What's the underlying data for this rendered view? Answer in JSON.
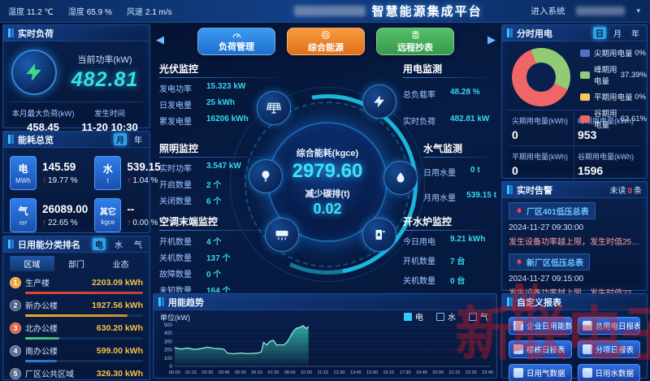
{
  "topbar": {
    "weather": [
      {
        "label": "温度",
        "value": "11.2 ℃"
      },
      {
        "label": "湿度",
        "value": "65.9 %"
      },
      {
        "label": "风速",
        "value": "2.1 m/s"
      }
    ],
    "title": "智慧能源集成平台",
    "enter_system": "进入系统"
  },
  "realtime_load": {
    "title": "实时负荷",
    "current_power_label": "当前功率(kW)",
    "current_power": "482.81",
    "max_load_label": "本月最大负荷(kW)",
    "max_load": "458.45",
    "occur_time_label": "发生时间",
    "occur_time": "11-20 10:30"
  },
  "energy_overview": {
    "title": "能耗总览",
    "toggle": [
      "月",
      "年"
    ],
    "selected": "月",
    "items": [
      {
        "name": "电",
        "unit": "MWh",
        "value": "145.59",
        "delta": "19.77 %"
      },
      {
        "name": "水",
        "unit": "t",
        "value": "539.15",
        "delta": "1.04 %"
      },
      {
        "name": "气",
        "unit": "m³",
        "value": "26089.00",
        "delta": "22.65 %"
      },
      {
        "name": "其它",
        "unit": "kgce",
        "value": "--",
        "delta": "0.00 %"
      }
    ]
  },
  "ranking": {
    "title": "日用能分类排名",
    "tabs": [
      "电",
      "水",
      "气"
    ],
    "selected_tab": "电",
    "columns": [
      "区域",
      "部门",
      "业态"
    ],
    "selected_column": "区域",
    "rows": [
      {
        "rank": "1",
        "name": "生产楼",
        "value": "2203.09 kWh",
        "pct": 100,
        "color": "#e8453c",
        "badge_color": "#f2a63c"
      },
      {
        "rank": "2",
        "name": "新办公楼",
        "value": "1927.56 kWh",
        "pct": 87,
        "color": "#f5a623",
        "badge_color": "#4a5f86"
      },
      {
        "rank": "3",
        "name": "北办公楼",
        "value": "630.20 kWh",
        "pct": 29,
        "color": "#43d17c",
        "badge_color": "#e2603f"
      },
      {
        "rank": "4",
        "name": "南办公楼",
        "value": "599.00 kWh",
        "pct": 27,
        "color": "#2f7fd6",
        "badge_color": "#5a6b8c"
      },
      {
        "rank": "5",
        "name": "厂区公共区域",
        "value": "326.30 kWh",
        "pct": 15,
        "color": "#2f7fd6",
        "badge_color": "#5a6b8c"
      }
    ]
  },
  "center": {
    "buttons": [
      {
        "label": "负荷管理",
        "color": "#1e7fdd"
      },
      {
        "label": "综合能源",
        "color": "#f07f1f"
      },
      {
        "label": "远程抄表",
        "color": "#3fae55"
      }
    ],
    "core": {
      "label1": "综合能耗(kgce)",
      "value1": "2979.60",
      "label2": "减少碳排(t)",
      "value2": "0.02"
    },
    "groups": {
      "pv": {
        "title": "光伏监控",
        "rows": [
          [
            "发电功率",
            "15.323 kW"
          ],
          [
            "日发电量",
            "25 kWh"
          ],
          [
            "累发电量",
            "16206 kWh"
          ]
        ]
      },
      "power": {
        "title": "用电监测",
        "rows": [
          [
            "总负载率",
            "48.28 %"
          ],
          [
            "实时负荷",
            "482.81 kW"
          ]
        ]
      },
      "lighting": {
        "title": "照明监控",
        "rows": [
          [
            "实时功率",
            "3.547 kW"
          ],
          [
            "开启数量",
            "2 个"
          ],
          [
            "关闭数量",
            "6 个"
          ]
        ]
      },
      "water": {
        "title": "水气监测",
        "rows": [
          [
            "日用水量",
            "0 t"
          ],
          [
            "月用水量",
            "539.15 t"
          ]
        ]
      },
      "ac": {
        "title": "空调末端监控",
        "rows": [
          [
            "开机数量",
            "4 个"
          ],
          [
            "关机数量",
            "137 个"
          ],
          [
            "故障数量",
            "0 个"
          ],
          [
            "未知数量",
            "164 个"
          ]
        ]
      },
      "boiler": {
        "title": "开水炉监控",
        "rows": [
          [
            "今日用电",
            "9.21 kWh"
          ],
          [
            "开机数量",
            "7 台"
          ],
          [
            "关机数量",
            "0 台"
          ]
        ]
      }
    }
  },
  "tou": {
    "title": "分时用电",
    "toggle": [
      "日",
      "月",
      "年"
    ],
    "selected": "日",
    "legend": [
      {
        "label": "尖期用电量",
        "pct": "0%",
        "color": "#5470c6"
      },
      {
        "label": "峰期用电量",
        "pct": "37.39%",
        "color": "#91cc75"
      },
      {
        "label": "平期用电量",
        "pct": "0%",
        "color": "#fac858"
      },
      {
        "label": "谷期用电量",
        "pct": "62.61%",
        "color": "#ee6666"
      }
    ],
    "stats": [
      {
        "label": "尖期用电量(kWh)",
        "value": "0"
      },
      {
        "label": "峰期用电量(kWh)",
        "value": "953"
      },
      {
        "label": "平期用电量(kWh)",
        "value": "0"
      },
      {
        "label": "谷期用电量(kWh)",
        "value": "1596"
      }
    ]
  },
  "alerts": {
    "title": "实时告警",
    "unread_label": "未读",
    "unread_count": "0",
    "unread_unit": "条",
    "items": [
      {
        "name": "厂区401低压总表",
        "time": "2024-11-27 09:30:00",
        "desc": "发生设备功率越上限，发生时值253.2kW，…"
      },
      {
        "name": "新厂区低压总表",
        "time": "2024-11-27 09:15:00",
        "desc": "发生设备功率越上限，发生时值224.94kW…"
      }
    ]
  },
  "reports": {
    "title": "自定义报表",
    "buttons": [
      "企业日用能数据",
      "总用电日报表",
      "楼栋日报表",
      "分项日报表",
      "日用气数据",
      "日用水数据"
    ]
  },
  "watermark": "新联电子",
  "chart_data": {
    "type": "area",
    "title": "用能趋势",
    "ylabel": "单位(kW)",
    "ylim": [
      0,
      500
    ],
    "yticks": [
      0,
      100,
      200,
      300,
      400,
      500
    ],
    "xticks": [
      "00:00",
      "01:15",
      "02:30",
      "03:45",
      "05:00",
      "06:15",
      "07:30",
      "08:45",
      "10:00",
      "11:15",
      "12:30",
      "13:45",
      "15:00",
      "16:15",
      "17:30",
      "18:45",
      "20:00",
      "21:15",
      "22:30",
      "23:45"
    ],
    "legend": [
      "电",
      "水",
      "气"
    ],
    "selected_series": "电",
    "grid": true,
    "series": [
      {
        "name": "电",
        "x_minutes": [
          0,
          30,
          60,
          90,
          120,
          150,
          180,
          210,
          225,
          240,
          270,
          300,
          330,
          360,
          380,
          395,
          405,
          420,
          435,
          450,
          465,
          480,
          495,
          510,
          525,
          540,
          555,
          570,
          585,
          600,
          610
        ],
        "values": [
          225,
          210,
          222,
          205,
          215,
          232,
          218,
          212,
          208,
          160,
          152,
          162,
          153,
          158,
          162,
          175,
          290,
          258,
          305,
          315,
          255,
          262,
          258,
          285,
          350,
          420,
          462,
          470,
          492,
          458,
          480
        ]
      }
    ]
  }
}
